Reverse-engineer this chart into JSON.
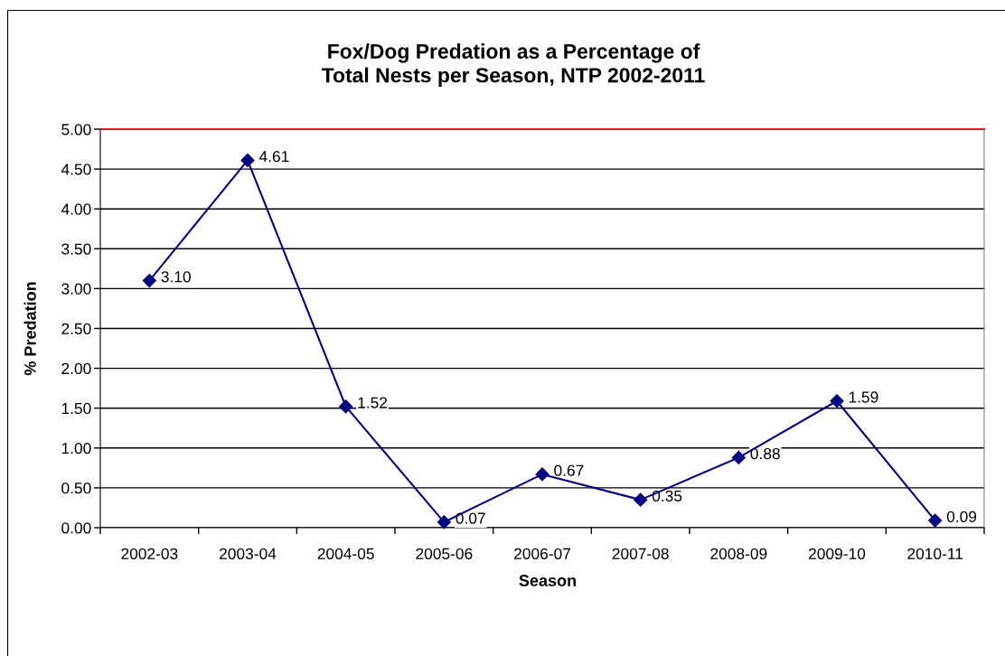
{
  "chart_data": {
    "type": "line",
    "title": "Fox/Dog Predation as a Percentage of\nTotal Nests per Season, NTP 2002-2011",
    "xlabel": "Season",
    "ylabel": "% Predation",
    "categories": [
      "2002-03",
      "2003-04",
      "2004-05",
      "2005-06",
      "2006-07",
      "2007-08",
      "2008-09",
      "2009-10",
      "2010-11"
    ],
    "series": [
      {
        "color": "#000080",
        "values": [
          3.1,
          4.61,
          1.52,
          0.07,
          0.67,
          0.35,
          0.88,
          1.59,
          0.09
        ],
        "value_labels": [
          "3.10",
          "4.61",
          "1.52",
          "0.07",
          "0.67",
          "0.35",
          "0.88",
          "1.59",
          "0.09"
        ]
      }
    ],
    "ylim": [
      0,
      5
    ],
    "yticks": [
      {
        "value": 0,
        "label": "0.00"
      },
      {
        "value": 0.5,
        "label": "0.50"
      },
      {
        "value": 1,
        "label": "1.00"
      },
      {
        "value": 1.5,
        "label": "1.50"
      },
      {
        "value": 2,
        "label": "2.00"
      },
      {
        "value": 2.5,
        "label": "2.50"
      },
      {
        "value": 3,
        "label": "3.00"
      },
      {
        "value": 3.5,
        "label": "3.50"
      },
      {
        "value": 4,
        "label": "4.00"
      },
      {
        "value": 4.5,
        "label": "4.50"
      },
      {
        "value": 5,
        "label": "5.00"
      }
    ],
    "grid": "y",
    "marker": "diamond",
    "line_style": "solid",
    "ref_lines": [
      {
        "axis": "y",
        "value": 5,
        "color": "#ff0000"
      }
    ]
  }
}
